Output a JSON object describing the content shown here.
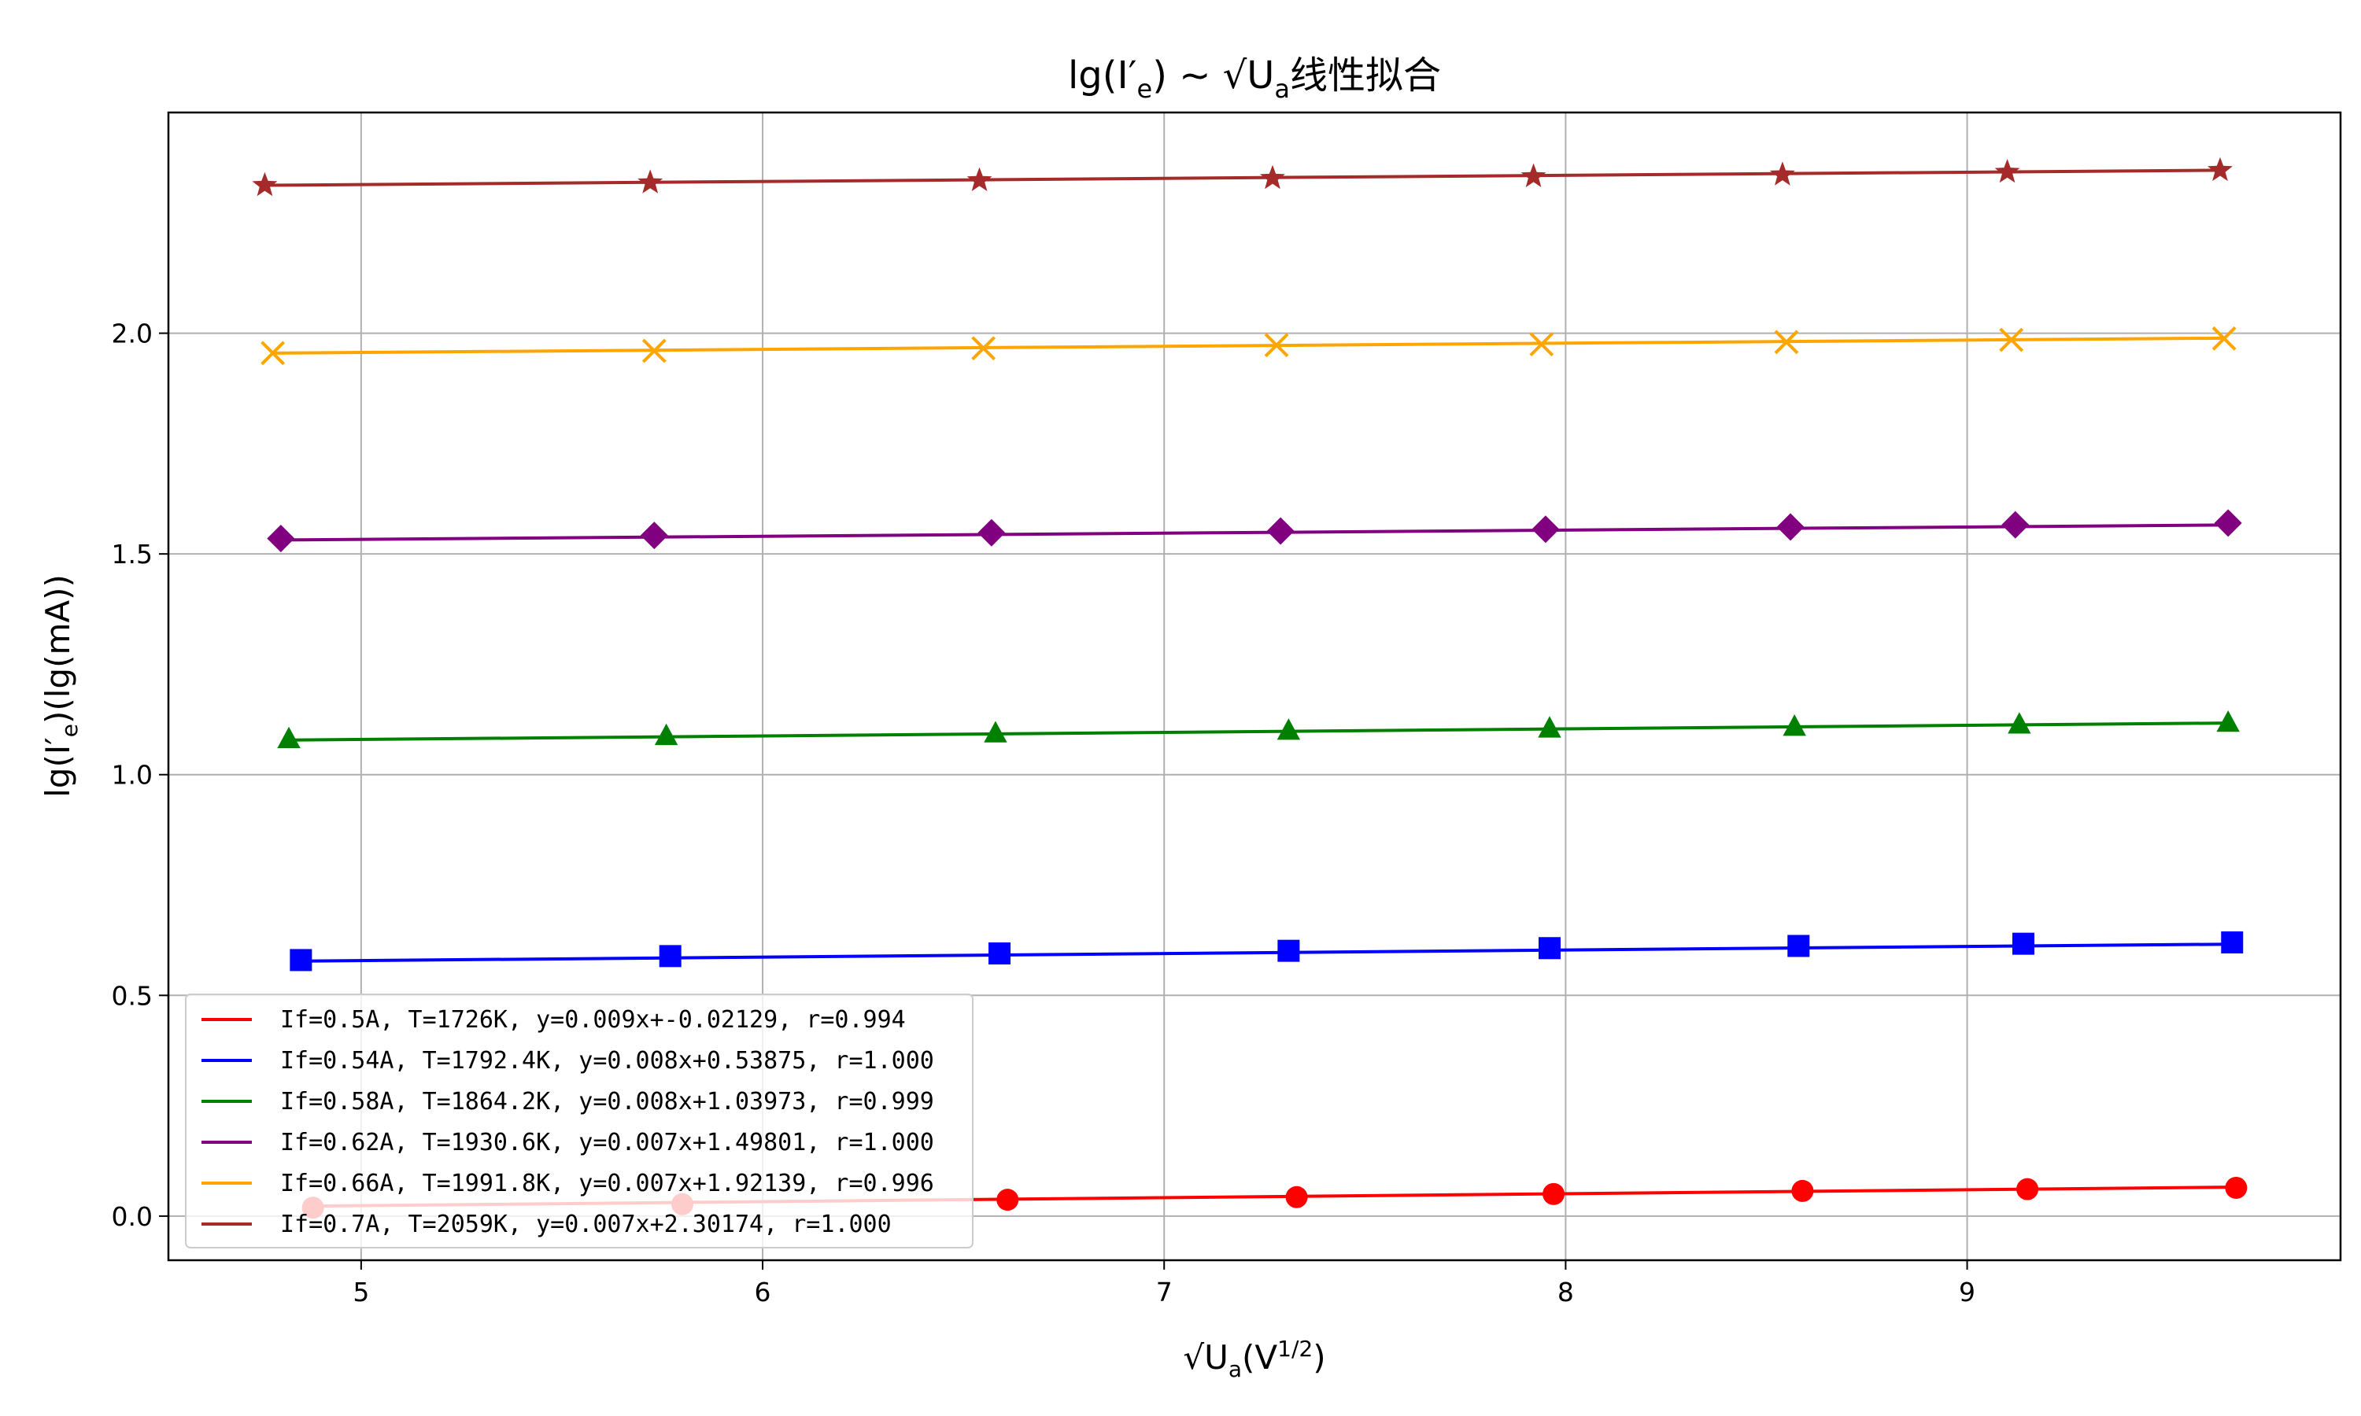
{
  "chart_data": {
    "type": "line",
    "title": "lg(I′e) ~ √Ua 线性拟合",
    "title_parts": {
      "main": "lg(I′",
      "sub": "e",
      "tail": ") ~ ",
      "sqrt_u": "U",
      "sqrt_sub": "a",
      "cjk": "线性拟合"
    },
    "xlabel": "√Ua(V^1/2)",
    "xlabel_parts": {
      "u": "U",
      "sub": "a",
      "open": "(V",
      "sup": "1/2",
      "close": ")"
    },
    "ylabel": "lg(I′e)(lg(mA))",
    "ylabel_parts": {
      "a": "lg(I′",
      "sub": "e",
      "b": ")(lg(mA))"
    },
    "xlim": [
      4.52,
      9.93
    ],
    "ylim": [
      -0.1,
      2.5
    ],
    "xticks": [
      5,
      6,
      7,
      8,
      9
    ],
    "xtick_labels": [
      "5",
      "6",
      "7",
      "8",
      "9"
    ],
    "yticks": [
      0.0,
      0.5,
      1.0,
      1.5,
      2.0
    ],
    "ytick_labels": [
      "0.0",
      "0.5",
      "1.0",
      "1.5",
      "2.0"
    ],
    "grid": true,
    "legend_position": "lower-left",
    "series": [
      {
        "name": "If=0.5A, T=1726K, y=0.009x+-0.02129, r=0.994",
        "color": "#ff0000",
        "marker": "circle",
        "slope": 0.009,
        "intercept": -0.02129,
        "fit_range": [
          4.88,
          9.67
        ],
        "x": [
          4.88,
          5.8,
          6.61,
          7.33,
          7.97,
          8.59,
          9.15,
          9.67
        ],
        "y": [
          0.019,
          0.027,
          0.037,
          0.043,
          0.05,
          0.057,
          0.061,
          0.064
        ]
      },
      {
        "name": "If=0.54A, T=1792.4K, y=0.008x+0.53875, r=1.000",
        "color": "#0000ff",
        "marker": "square",
        "slope": 0.008,
        "intercept": 0.53875,
        "fit_range": [
          4.85,
          9.66
        ],
        "x": [
          4.85,
          5.77,
          6.59,
          7.31,
          7.96,
          8.58,
          9.14,
          9.66
        ],
        "y": [
          0.58,
          0.589,
          0.595,
          0.601,
          0.607,
          0.612,
          0.617,
          0.62
        ]
      },
      {
        "name": "If=0.58A, T=1864.2K, y=0.008x+1.03973, r=0.999",
        "color": "#008000",
        "marker": "triangle",
        "slope": 0.008,
        "intercept": 1.03973,
        "fit_range": [
          4.82,
          9.65
        ],
        "x": [
          4.82,
          5.76,
          6.58,
          7.31,
          7.96,
          8.57,
          9.13,
          9.65
        ],
        "y": [
          1.08,
          1.087,
          1.093,
          1.099,
          1.104,
          1.108,
          1.113,
          1.117
        ]
      },
      {
        "name": "If=0.62A, T=1930.6K, y=0.007x+1.49801, r=1.000",
        "color": "#800080",
        "marker": "diamond",
        "slope": 0.007,
        "intercept": 1.49801,
        "fit_range": [
          4.8,
          9.65
        ],
        "x": [
          4.8,
          5.73,
          6.57,
          7.29,
          7.95,
          8.56,
          9.12,
          9.65
        ],
        "y": [
          1.535,
          1.542,
          1.548,
          1.552,
          1.556,
          1.561,
          1.566,
          1.57
        ]
      },
      {
        "name": "If=0.66A, T=1991.8K, y=0.007x+1.92139, r=0.996",
        "color": "#ffa500",
        "marker": "x",
        "slope": 0.007,
        "intercept": 1.92139,
        "fit_range": [
          4.78,
          9.64
        ],
        "x": [
          4.78,
          5.73,
          6.55,
          7.28,
          7.94,
          8.55,
          9.11,
          9.64
        ],
        "y": [
          1.955,
          1.96,
          1.966,
          1.973,
          1.975,
          1.98,
          1.985,
          1.988
        ]
      },
      {
        "name": "If=0.7A, T=2059K, y=0.007x+2.30174, r=1.000",
        "color": "#a52a2a",
        "marker": "star",
        "slope": 0.007,
        "intercept": 2.30174,
        "fit_range": [
          4.76,
          9.63
        ],
        "x": [
          4.76,
          5.72,
          6.54,
          7.27,
          7.92,
          8.54,
          9.1,
          9.63
        ],
        "y": [
          2.335,
          2.341,
          2.346,
          2.351,
          2.355,
          2.359,
          2.365,
          2.369
        ]
      }
    ]
  }
}
